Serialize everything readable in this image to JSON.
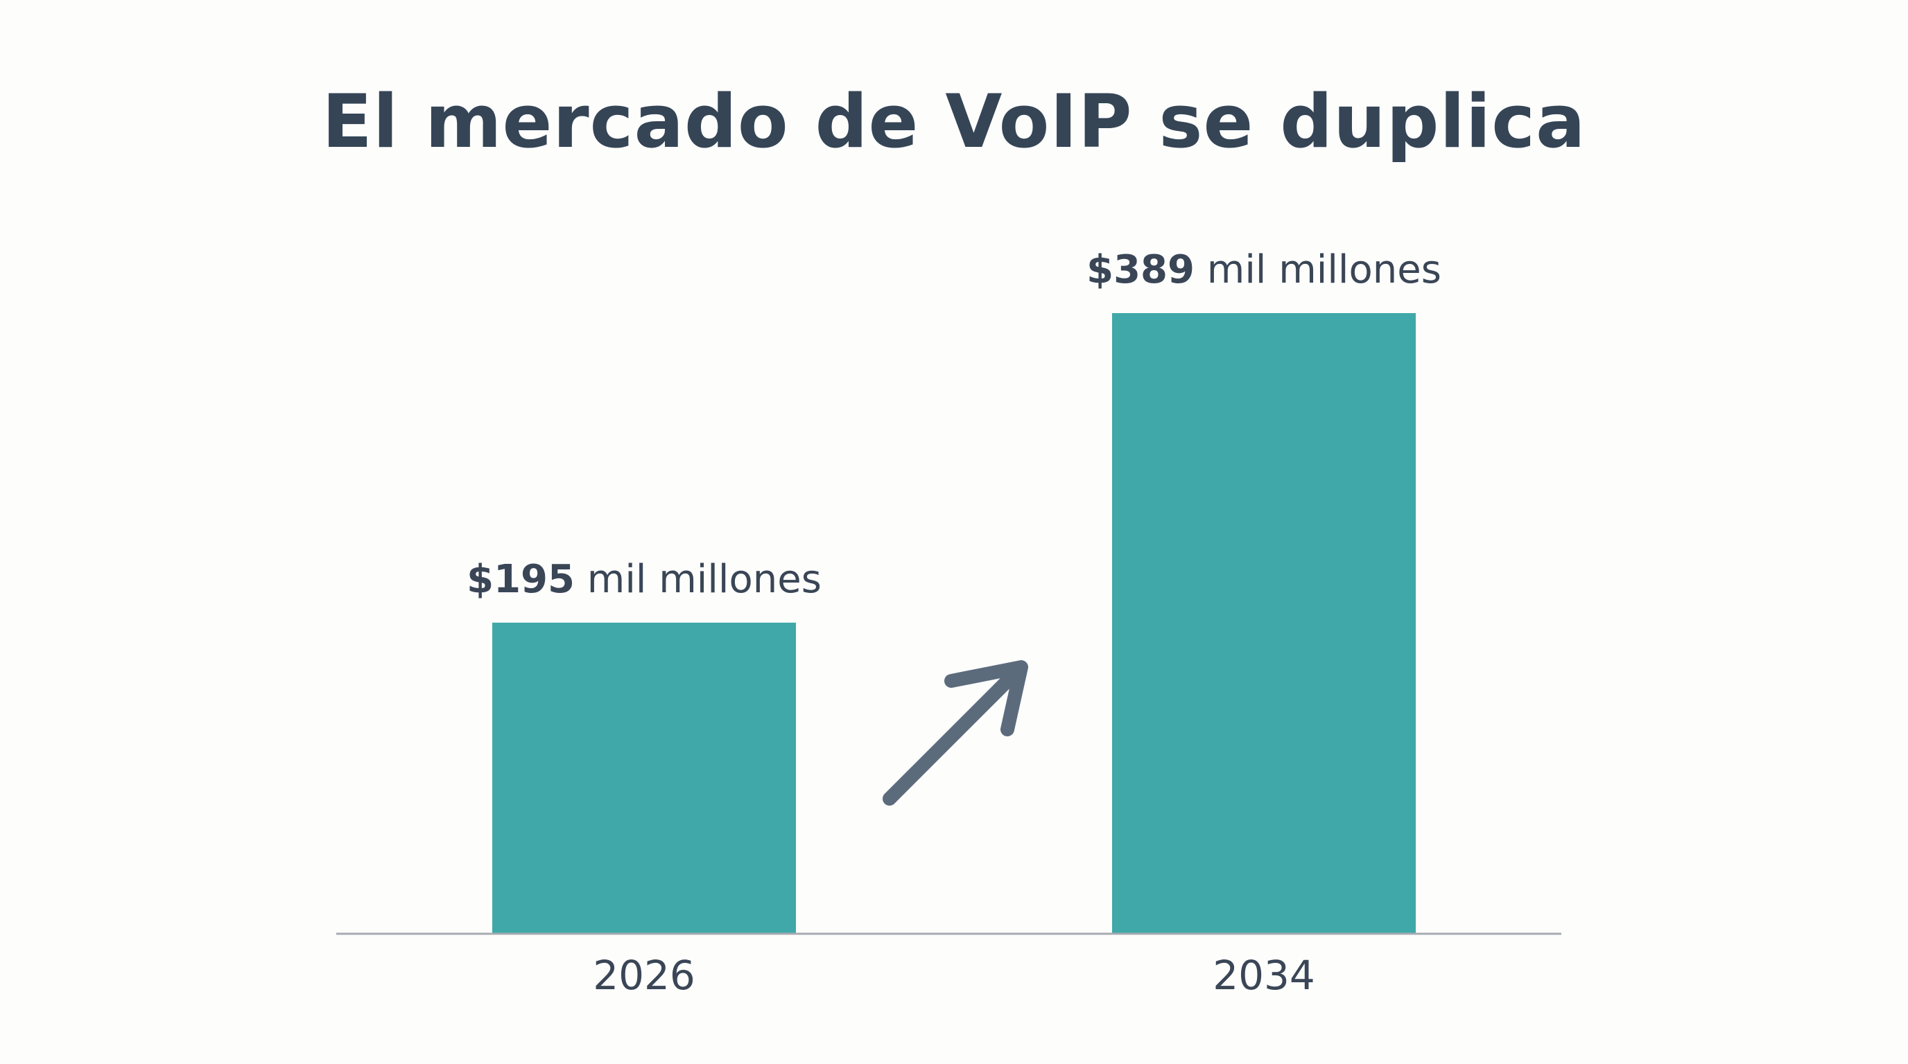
{
  "chart_data": {
    "type": "bar",
    "title": "El mercado de VoIP se duplica",
    "categories": [
      "2026",
      "2034"
    ],
    "values": [
      195,
      389
    ],
    "value_labels": [
      {
        "amount": "$195",
        "unit": "mil millones"
      },
      {
        "amount": "$389",
        "unit": "mil millones"
      }
    ],
    "xlabel": "",
    "ylabel": "",
    "ylim": [
      0,
      389
    ],
    "grid": false,
    "trend_arrow": "up-right",
    "colors": {
      "bar": "#40a8a8",
      "title": "#354556",
      "label": "#3a4656",
      "baseline": "#a6abb1",
      "arrow": "#5c6b7c",
      "background": "#fdfdfc"
    }
  }
}
